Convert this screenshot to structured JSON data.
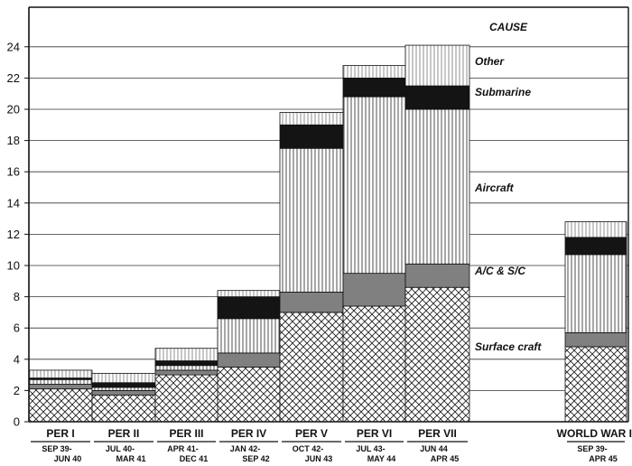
{
  "chart_data": {
    "type": "bar",
    "subtype": "stacked",
    "title": "",
    "xlabel": "",
    "ylabel": "",
    "ylim": [
      0,
      25
    ],
    "yticks": [
      0,
      2,
      4,
      6,
      8,
      10,
      12,
      14,
      16,
      18,
      20,
      22,
      24
    ],
    "grid": true,
    "legend_heading": "CAUSE",
    "legend_placement": "right, inline labels",
    "periods": [
      {
        "label": "PER I",
        "dates": [
          "SEP 39-",
          "JUN 40"
        ]
      },
      {
        "label": "PER II",
        "dates": [
          "JUL 40-",
          "MAR 41"
        ]
      },
      {
        "label": "PER III",
        "dates": [
          "APR 41-",
          "DEC 41"
        ]
      },
      {
        "label": "PER IV",
        "dates": [
          "JAN 42-",
          "SEP 42"
        ]
      },
      {
        "label": "PER V",
        "dates": [
          "OCT 42-",
          "JUN 43"
        ]
      },
      {
        "label": "PER VI",
        "dates": [
          "JUL 43-",
          "MAY 44"
        ]
      },
      {
        "label": "PER VII",
        "dates": [
          "JUN 44",
          "APR 45"
        ]
      },
      {
        "label": "WORLD WAR II",
        "dates": [
          "SEP 39-",
          "APR 45"
        ]
      }
    ],
    "series": [
      {
        "name": "Surface craft",
        "pattern": "crosshatch",
        "values": [
          2.1,
          1.7,
          3.0,
          3.5,
          7.0,
          7.4,
          8.6,
          4.8
        ]
      },
      {
        "name": "A/C & S/C",
        "pattern": "gray",
        "values": [
          0.3,
          0.3,
          0.3,
          0.9,
          1.3,
          2.1,
          1.5,
          0.9
        ]
      },
      {
        "name": "Aircraft",
        "pattern": "vertical",
        "values": [
          0.3,
          0.2,
          0.3,
          2.2,
          9.2,
          11.3,
          9.9,
          5.0
        ]
      },
      {
        "name": "Submarine",
        "pattern": "black",
        "values": [
          0.1,
          0.3,
          0.3,
          1.4,
          1.5,
          1.2,
          1.5,
          1.1
        ]
      },
      {
        "name": "Other",
        "pattern": "vertical-light",
        "values": [
          0.5,
          0.6,
          0.8,
          0.4,
          0.8,
          0.8,
          2.6,
          1.0
        ]
      }
    ],
    "colors": {
      "gray": "#808080",
      "black": "#141414",
      "line": "#111111"
    }
  }
}
